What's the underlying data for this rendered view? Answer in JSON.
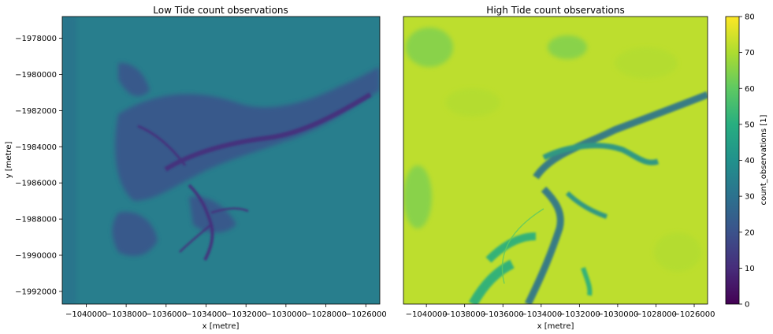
{
  "chart_data": [
    {
      "type": "heatmap",
      "title": "Low Tide count observations",
      "xlabel": "x [metre]",
      "ylabel": "y [metre]",
      "xlim": [
        -1041200,
        -1025300
      ],
      "ylim": [
        -1992700,
        -1976800
      ],
      "xticks": [
        -1040000,
        -1038000,
        -1036000,
        -1034000,
        -1032000,
        -1030000,
        -1028000,
        -1026000
      ],
      "xtick_labels": [
        "−1040000",
        "−1038000",
        "−1036000",
        "−1034000",
        "−1032000",
        "−1030000",
        "−1028000",
        "−1026000"
      ],
      "yticks": [
        -1978000,
        -1980000,
        -1982000,
        -1984000,
        -1986000,
        -1988000,
        -1990000,
        -1992000
      ],
      "ytick_labels": [
        "−1978000",
        "−1980000",
        "−1982000",
        "−1984000",
        "−1986000",
        "−1988000",
        "−1990000",
        "−1992000"
      ],
      "background_value": 34,
      "channel_value": 20,
      "grid": false
    },
    {
      "type": "heatmap",
      "title": "High Tide count observations",
      "xlabel": "x [metre]",
      "xlim": [
        -1041200,
        -1025300
      ],
      "ylim": [
        -1992700,
        -1976800
      ],
      "xticks": [
        -1040000,
        -1038000,
        -1036000,
        -1034000,
        -1032000,
        -1030000,
        -1028000,
        -1026000
      ],
      "xtick_labels": [
        "−1040000",
        "−1038000",
        "−1036000",
        "−1034000",
        "−1032000",
        "−1030000",
        "−1028000",
        "−1026000"
      ],
      "background_value": 72,
      "channel_value": 35,
      "grid": false
    }
  ],
  "colorbar": {
    "label": "count_observations [1]",
    "colormap": "viridis",
    "range": [
      0,
      80
    ],
    "ticks": [
      0,
      10,
      20,
      30,
      40,
      50,
      60,
      70,
      80
    ],
    "tick_labels": [
      "0",
      "10",
      "20",
      "30",
      "40",
      "50",
      "60",
      "70",
      "80"
    ]
  }
}
